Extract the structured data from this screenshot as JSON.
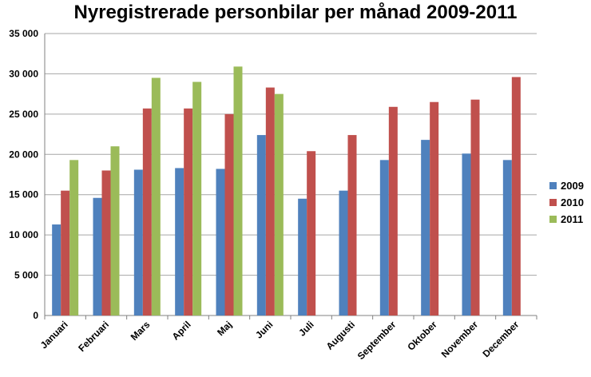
{
  "chart_data": {
    "type": "bar",
    "title": "Nyregistrerade personbilar per månad 2009-2011",
    "categories": [
      "Januari",
      "Februari",
      "Mars",
      "April",
      "Maj",
      "Juni",
      "Juli",
      "Augusti",
      "September",
      "Oktober",
      "November",
      "December"
    ],
    "series": [
      {
        "name": "2009",
        "color": "#4f81bd",
        "values": [
          11300,
          14600,
          18100,
          18300,
          18200,
          22400,
          14500,
          15500,
          19300,
          21800,
          20100,
          19300
        ]
      },
      {
        "name": "2010",
        "color": "#c0504d",
        "values": [
          15500,
          18000,
          25700,
          25700,
          25000,
          28300,
          20400,
          22400,
          25900,
          26500,
          26800,
          29600
        ]
      },
      {
        "name": "2011",
        "color": "#9bbb59",
        "values": [
          19300,
          21000,
          29500,
          29000,
          30900,
          27500,
          null,
          null,
          null,
          null,
          null,
          null
        ]
      }
    ],
    "ylim": [
      0,
      35000
    ],
    "yticks": [
      0,
      5000,
      10000,
      15000,
      20000,
      25000,
      30000,
      35000
    ],
    "ytick_labels": [
      "0",
      "5 000",
      "10 000",
      "15 000",
      "20 000",
      "25 000",
      "30 000",
      "35 000"
    ],
    "grid": true,
    "legend_position": "right"
  }
}
